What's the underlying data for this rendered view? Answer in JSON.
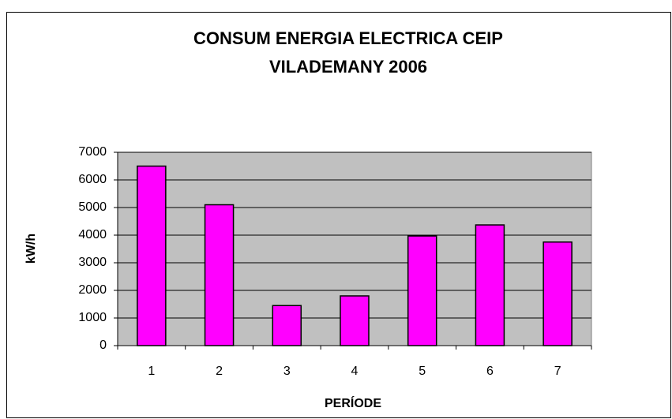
{
  "chart_data": {
    "type": "bar",
    "title": [
      "CONSUM ENERGIA ELECTRICA CEIP",
      "VILADEMANY 2006"
    ],
    "x_label": "PERÍODE",
    "y_label": "kW/h",
    "categories": [
      "1",
      "2",
      "3",
      "4",
      "5",
      "6",
      "7"
    ],
    "values": [
      6500,
      5100,
      1450,
      1800,
      3970,
      4370,
      3750
    ],
    "color": "#ff00ff",
    "ylim": [
      0,
      7000
    ],
    "yticks": [
      0,
      1000,
      2000,
      3000,
      4000,
      5000,
      6000,
      7000
    ],
    "grid": true
  }
}
